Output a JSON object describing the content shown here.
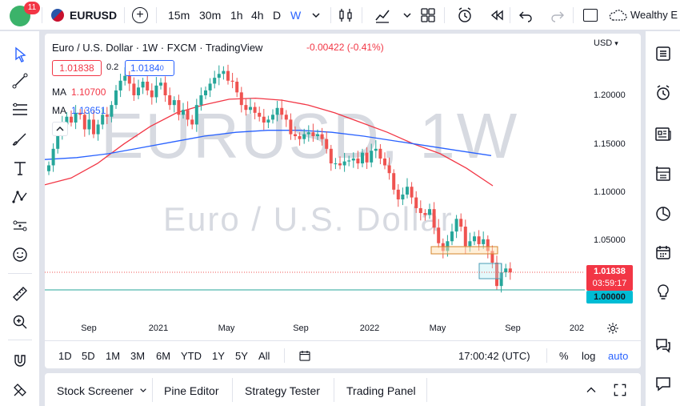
{
  "toolbar": {
    "notification_count": "11",
    "symbol": "EURUSD",
    "timeframes": [
      "15m",
      "30m",
      "1h",
      "4h",
      "D",
      "W"
    ],
    "active_timeframe": "W",
    "layout_name": "Wealthy E"
  },
  "legend": {
    "title": "Euro / U.S. Dollar · 1W · FXCM · TradingView",
    "change": "-0.00422 (-0.41%)",
    "bid": "1.01838",
    "spread": "0.2",
    "ask": "1.0184",
    "ask_suffix": "0",
    "ma1_label": "MA",
    "ma1_value": "1.10700",
    "ma2_label": "MA",
    "ma2_value": "1.13651"
  },
  "watermark": {
    "symbol": "EURUSD, 1W",
    "description": "Euro / U.S. Dollar"
  },
  "price_axis": {
    "currency": "USD",
    "labels": [
      "1.20000",
      "1.15000",
      "1.10000",
      "1.05000"
    ],
    "last_price": "1.01838",
    "countdown": "03:59:17",
    "line_price": "1.00000"
  },
  "time_axis": {
    "labels": [
      "Sep",
      "2021",
      "May",
      "Sep",
      "2022",
      "May",
      "Sep",
      "202"
    ]
  },
  "range_bar": {
    "ranges": [
      "1D",
      "5D",
      "1M",
      "3M",
      "6M",
      "YTD",
      "1Y",
      "5Y",
      "All"
    ],
    "clock": "17:00:42 (UTC)",
    "percent": "%",
    "log": "log",
    "auto": "auto"
  },
  "bottom_panel": {
    "tabs": [
      "Stock Screener",
      "Pine Editor",
      "Strategy Tester",
      "Trading Panel"
    ]
  },
  "colors": {
    "up": "#26a69a",
    "down": "#ef5350",
    "ma_blue": "#2962ff",
    "ma_red": "#f23645",
    "accent": "#2962ff"
  },
  "chart_data": {
    "type": "candlestick",
    "symbol": "EURUSD",
    "timeframe": "1W",
    "y_range": [
      0.985,
      1.24
    ],
    "x_categories": [
      "2020-08",
      "2020-09",
      "2020-10",
      "2020-11",
      "2020-12",
      "2021-01",
      "2021-02",
      "2021-03",
      "2021-04",
      "2021-05",
      "2021-06",
      "2021-07",
      "2021-08",
      "2021-09",
      "2021-10",
      "2021-11",
      "2021-12",
      "2022-01",
      "2022-02",
      "2022-03",
      "2022-04",
      "2022-05",
      "2022-06",
      "2022-07"
    ],
    "series": [
      {
        "name": "MA",
        "color": "#f23645",
        "values": [
          1.108,
          1.115,
          1.13,
          1.15,
          1.168,
          1.182,
          1.19,
          1.196,
          1.197,
          1.195,
          1.19,
          1.182,
          1.172,
          1.162,
          1.15,
          1.14,
          1.125,
          1.107
        ]
      },
      {
        "name": "MA",
        "color": "#2962ff",
        "values": [
          1.134,
          1.136,
          1.14,
          1.146,
          1.152,
          1.158,
          1.162,
          1.164,
          1.164,
          1.162,
          1.158,
          1.153,
          1.148,
          1.143,
          1.138
        ]
      }
    ],
    "last_close": 1.01838,
    "horizontal_line": 1.0
  }
}
